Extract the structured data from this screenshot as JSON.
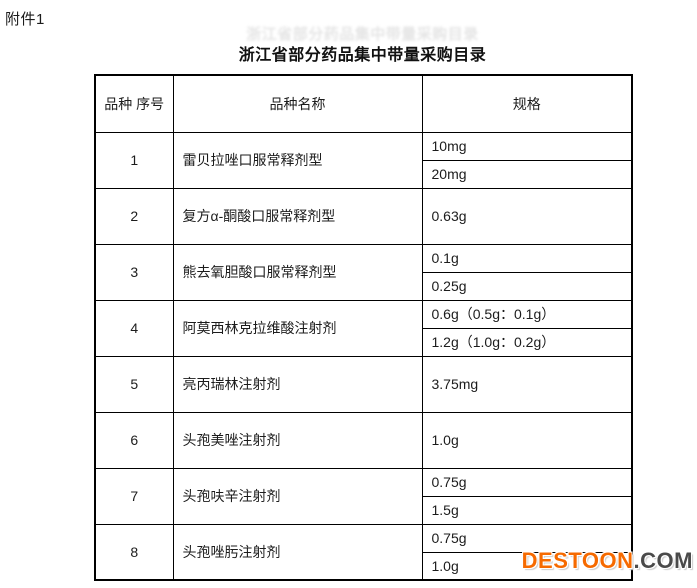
{
  "page": {
    "attachment_label": "附件1",
    "title": "浙江省部分药品集中带量采购目录"
  },
  "table": {
    "headers": {
      "no": "品种\n序号",
      "name": "品种名称",
      "spec": "规格"
    },
    "rows": [
      {
        "no": "1",
        "name": "雷贝拉唑口服常释剂型",
        "specs": [
          "10mg",
          "20mg"
        ]
      },
      {
        "no": "2",
        "name": "复方α-酮酸口服常释剂型",
        "specs": [
          "0.63g"
        ]
      },
      {
        "no": "3",
        "name": "熊去氧胆酸口服常释剂型",
        "specs": [
          "0.1g",
          "0.25g"
        ]
      },
      {
        "no": "4",
        "name": "阿莫西林克拉维酸注射剂",
        "specs": [
          "0.6g（0.5g：0.1g）",
          "1.2g（1.0g：0.2g）"
        ]
      },
      {
        "no": "5",
        "name": "亮丙瑞林注射剂",
        "specs": [
          "3.75mg"
        ]
      },
      {
        "no": "6",
        "name": "头孢美唑注射剂",
        "specs": [
          "1.0g"
        ]
      },
      {
        "no": "7",
        "name": "头孢呋辛注射剂",
        "specs": [
          "0.75g",
          "1.5g"
        ]
      },
      {
        "no": "8",
        "name": "头孢唑肟注射剂",
        "specs": [
          "0.75g",
          "1.0g"
        ]
      }
    ]
  },
  "watermark": {
    "brand": "DESTOON",
    "suffix": ".COM",
    "brand_color": "#f66a00",
    "suffix_color": "#4a4a4a"
  },
  "colors": {
    "text": "#1c1c1c",
    "border": "#000000",
    "background": "#ffffff"
  }
}
